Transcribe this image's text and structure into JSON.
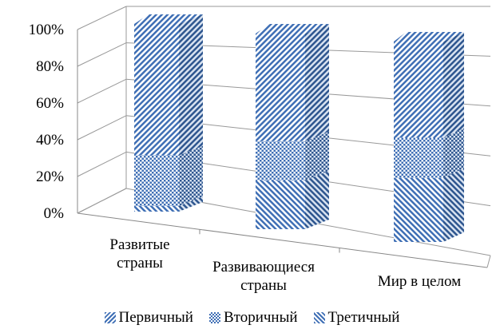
{
  "chart_data": {
    "type": "bar",
    "stacked": true,
    "three_d": true,
    "percent_stacked": true,
    "categories": [
      "Развитые\nстраны",
      "Развивающиеся\nстраны",
      "Мир в целом"
    ],
    "series": [
      {
        "name": "Первичный",
        "values": [
          3,
          25,
          32
        ],
        "pattern": "stripes-135"
      },
      {
        "name": "Вторичный",
        "values": [
          27,
          20,
          20
        ],
        "pattern": "checker"
      },
      {
        "name": "Третичный",
        "values": [
          70,
          55,
          48
        ],
        "pattern": "stripes-45"
      }
    ],
    "yticks": [
      "0%",
      "20%",
      "40%",
      "60%",
      "80%",
      "100%"
    ],
    "ylim": [
      0,
      100
    ],
    "legend_position": "bottom",
    "grid": true,
    "colors": {
      "bar": "#3f6fb5",
      "grid": "#999999",
      "axis": "#888888"
    }
  }
}
